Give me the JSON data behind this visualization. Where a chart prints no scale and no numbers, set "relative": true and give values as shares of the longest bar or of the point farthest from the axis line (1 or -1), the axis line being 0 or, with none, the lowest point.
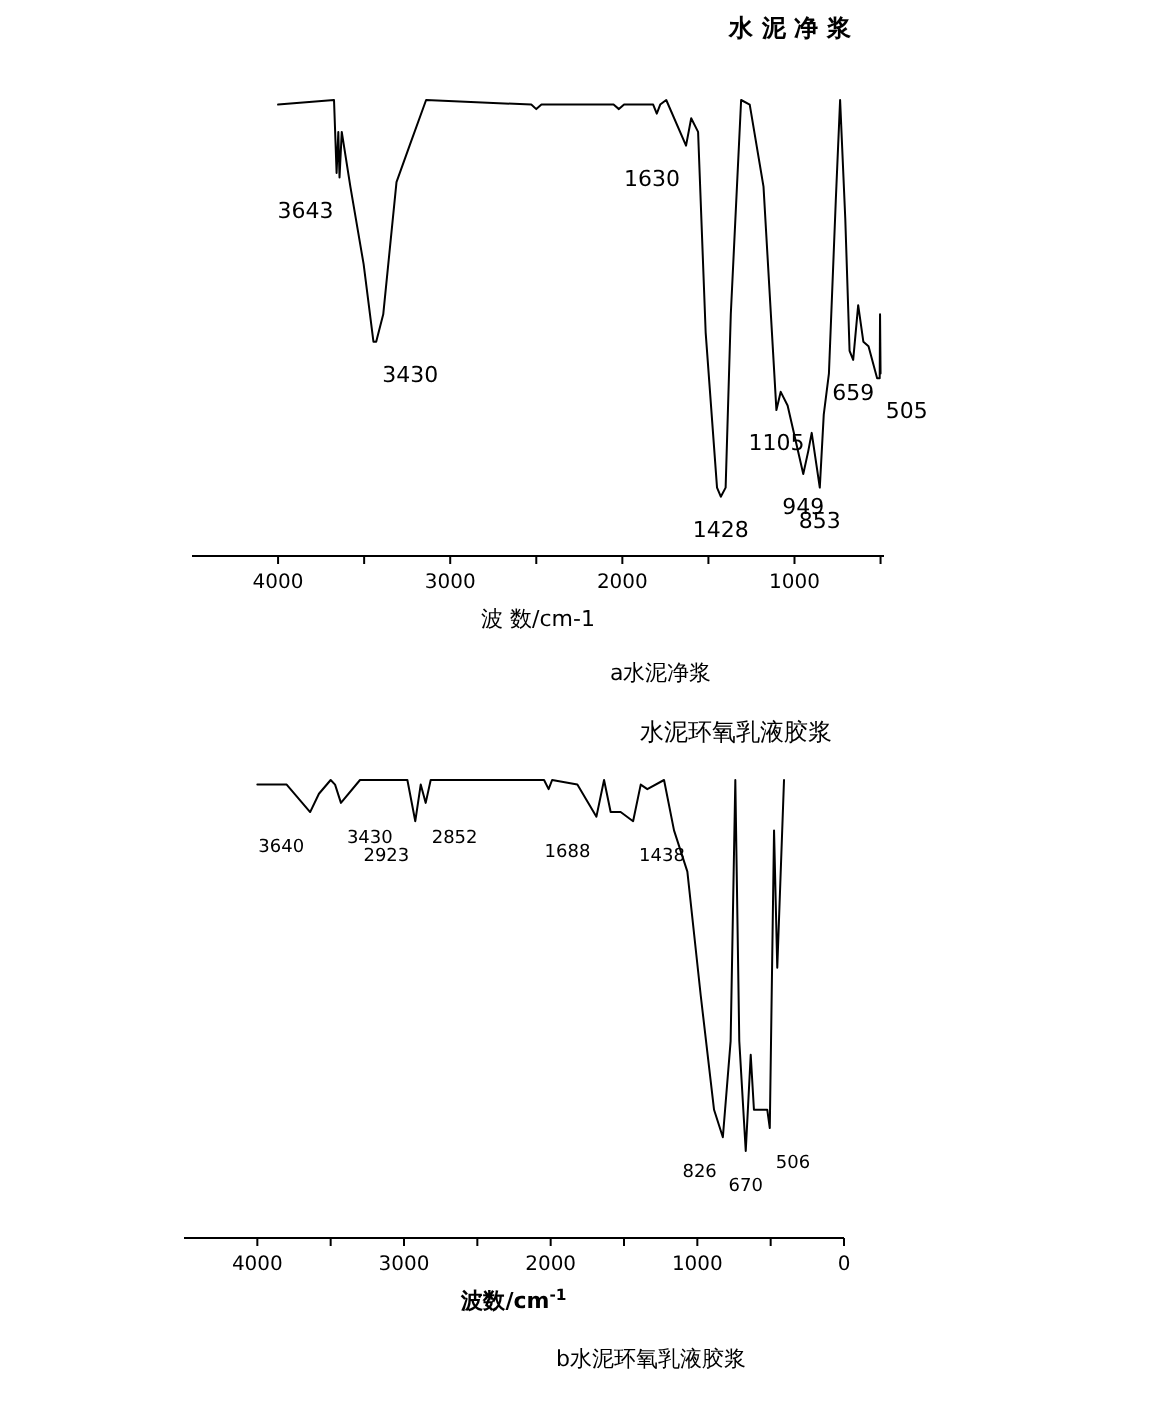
{
  "chart_data": [
    {
      "type": "line",
      "title": "水 泥 净 浆",
      "xlabel": "波 数/cm-1",
      "relative": true,
      "xlim": [
        4500,
        480
      ],
      "xticks": [
        4000,
        {
          "value": 3500,
          "label": null
        },
        3000,
        {
          "value": 2500,
          "label": null
        },
        2000,
        {
          "value": 1500,
          "label": null
        },
        1000,
        {
          "value": 500,
          "label": null
        }
      ],
      "grid": false,
      "series": [
        {
          "color": "#000000",
          "x": [
            4000,
            3675,
            3660,
            3650,
            3643,
            3630,
            3580,
            3503,
            3446,
            3430,
            3389,
            3312,
            3236,
            3140,
            2529,
            2500,
            2470,
            2051,
            2020,
            1990,
            1821,
            1800,
            1780,
            1745,
            1630,
            1600,
            1560,
            1516,
            1450,
            1428,
            1400,
            1370,
            1310,
            1260,
            1180,
            1105,
            1080,
            1040,
            949,
            920,
            900,
            853,
            830,
            800,
            760,
            735,
            705,
            680,
            659,
            630,
            600,
            570,
            520,
            505,
            503,
            500
          ],
          "values": [
            0.99,
            1.0,
            0.84,
            0.93,
            0.83,
            0.93,
            0.81,
            0.64,
            0.47,
            0.47,
            0.53,
            0.82,
            0.9,
            1.0,
            0.99,
            0.98,
            0.99,
            0.99,
            0.98,
            0.99,
            0.99,
            0.97,
            0.99,
            1.0,
            0.9,
            0.96,
            0.93,
            0.49,
            0.15,
            0.13,
            0.15,
            0.53,
            1.0,
            0.99,
            0.81,
            0.32,
            0.36,
            0.33,
            0.18,
            0.23,
            0.27,
            0.15,
            0.31,
            0.4,
            0.78,
            1.0,
            0.74,
            0.45,
            0.43,
            0.55,
            0.47,
            0.46,
            0.39,
            0.39,
            0.53,
            0.4
          ]
        }
      ],
      "annotations": [
        {
          "text": "3643",
          "x": 3643,
          "y": 0.83
        },
        {
          "text": "3430",
          "x": 3430,
          "y": 0.47
        },
        {
          "text": "1630",
          "x": 1630,
          "y": 0.9
        },
        {
          "text": "1428",
          "x": 1428,
          "y": 0.13
        },
        {
          "text": "1105",
          "x": 1105,
          "y": 0.32
        },
        {
          "text": "949",
          "x": 949,
          "y": 0.18
        },
        {
          "text": "853",
          "x": 853,
          "y": 0.15
        },
        {
          "text": "659",
          "x": 659,
          "y": 0.43
        },
        {
          "text": "505",
          "x": 505,
          "y": 0.39
        },
        "a水泥净浆"
      ]
    },
    {
      "type": "line",
      "title": "水泥环氧乳液胶浆",
      "xlabel": "波数/cm$^{-1}$",
      "relative": true,
      "xlim": [
        4500,
        0
      ],
      "xticks": [
        4000,
        {
          "value": 3500,
          "label": null
        },
        3000,
        {
          "value": 2500,
          "label": null
        },
        2000,
        {
          "value": 1500,
          "label": null
        },
        1000,
        {
          "value": 500,
          "label": null
        },
        0
      ],
      "grid": false,
      "series": [
        {
          "color": "#000000",
          "x": [
            4000,
            3800,
            3640,
            3580,
            3500,
            3470,
            3430,
            3300,
            2977,
            2923,
            2886,
            2852,
            2818,
            2045,
            2014,
            1990,
            1818,
            1688,
            1636,
            1591,
            1523,
            1438,
            1386,
            1341,
            1227,
            1159,
            1068,
            977,
            886,
            826,
            773,
            741,
            714,
            670,
            636,
            614,
            523,
            506,
            477,
            455,
            409
          ],
          "values": [
            0.99,
            0.99,
            0.93,
            0.97,
            1.0,
            0.99,
            0.95,
            1.0,
            1.0,
            0.91,
            0.99,
            0.95,
            1.0,
            1.0,
            0.98,
            1.0,
            0.99,
            0.92,
            1.0,
            0.93,
            0.93,
            0.91,
            0.99,
            0.98,
            1.0,
            0.89,
            0.8,
            0.53,
            0.28,
            0.22,
            0.43,
            1.0,
            0.43,
            0.19,
            0.4,
            0.28,
            0.28,
            0.24,
            0.89,
            0.59,
            1.0
          ]
        }
      ],
      "annotations": [
        {
          "text": "3640",
          "x": 3640,
          "y": 0.93
        },
        {
          "text": "3430",
          "x": 3430,
          "y": 0.95
        },
        {
          "text": "2923",
          "x": 2923,
          "y": 0.91
        },
        {
          "text": "2852",
          "x": 2852,
          "y": 0.95
        },
        {
          "text": "1688",
          "x": 1688,
          "y": 0.92
        },
        {
          "text": "1438",
          "x": 1438,
          "y": 0.91
        },
        {
          "text": "826",
          "x": 826,
          "y": 0.22
        },
        {
          "text": "670",
          "x": 670,
          "y": 0.19
        },
        {
          "text": "506",
          "x": 506,
          "y": 0.24
        },
        "b水泥环氧乳液胶浆"
      ]
    }
  ]
}
